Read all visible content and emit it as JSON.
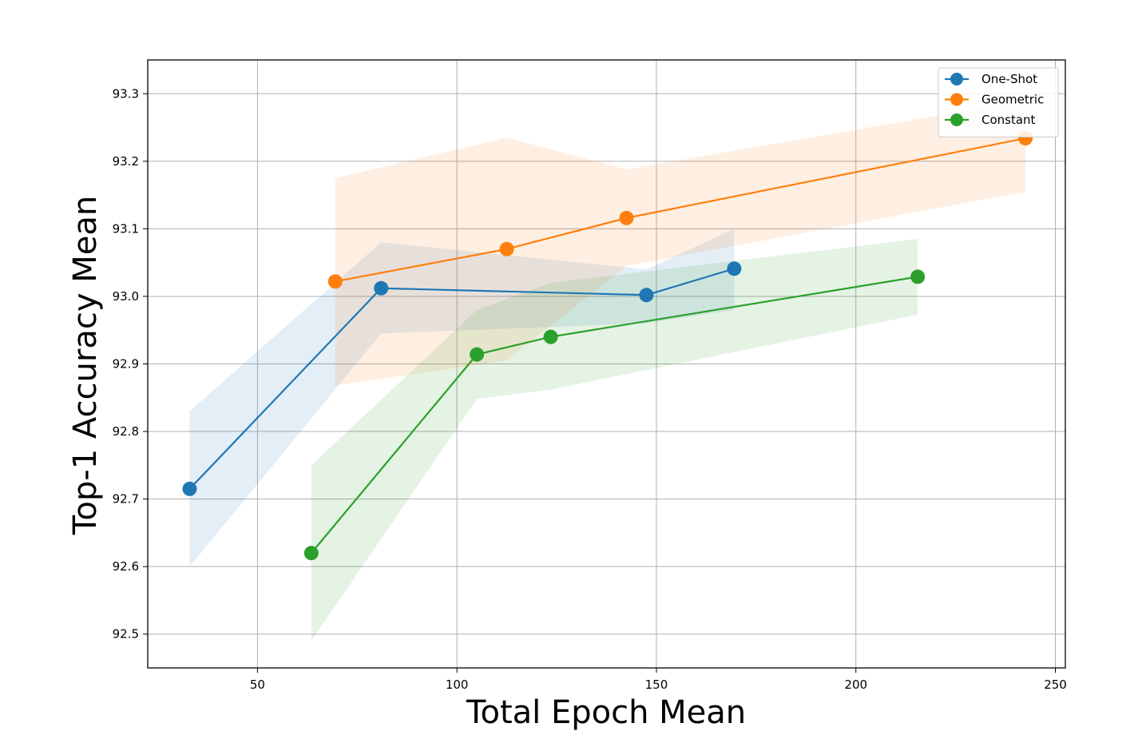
{
  "chart_data": {
    "type": "line",
    "title": "",
    "xlabel": "Total Epoch Mean",
    "ylabel": "Top-1 Accuracy Mean",
    "xlim": [
      22.5,
      252.5
    ],
    "ylim": [
      92.45,
      93.35
    ],
    "xticks": [
      50,
      100,
      150,
      200,
      250
    ],
    "yticks": [
      92.5,
      92.6,
      92.7,
      92.8,
      92.9,
      93.0,
      93.1,
      93.2,
      93.3
    ],
    "xtick_labels": [
      "50",
      "100",
      "150",
      "200",
      "250"
    ],
    "ytick_labels": [
      "92.5",
      "92.6",
      "92.7",
      "92.8",
      "92.9",
      "93.0",
      "93.1",
      "93.2",
      "93.3"
    ],
    "grid": true,
    "legend_position": "top-right",
    "series": [
      {
        "name": "One-Shot",
        "color": "#1f77b4",
        "x": [
          33,
          81,
          147.5,
          169.5
        ],
        "y": [
          92.715,
          93.012,
          93.002,
          93.041
        ],
        "upper": [
          92.83,
          93.08,
          93.04,
          93.1
        ],
        "lower": [
          92.6,
          92.945,
          92.96,
          92.98
        ]
      },
      {
        "name": "Geometric",
        "color": "#ff7f0e",
        "x": [
          69.5,
          112.5,
          142.5,
          242.5
        ],
        "y": [
          93.022,
          93.07,
          93.116,
          93.234
        ],
        "upper": [
          93.175,
          93.235,
          93.188,
          93.29
        ],
        "lower": [
          92.868,
          92.905,
          93.045,
          93.155
        ]
      },
      {
        "name": "Constant",
        "color": "#2ca02c",
        "x": [
          63.5,
          105,
          123.5,
          215.5
        ],
        "y": [
          92.62,
          92.914,
          92.94,
          93.029
        ],
        "upper": [
          92.75,
          92.98,
          93.02,
          93.085
        ],
        "lower": [
          92.49,
          92.848,
          92.862,
          92.973
        ]
      }
    ]
  }
}
